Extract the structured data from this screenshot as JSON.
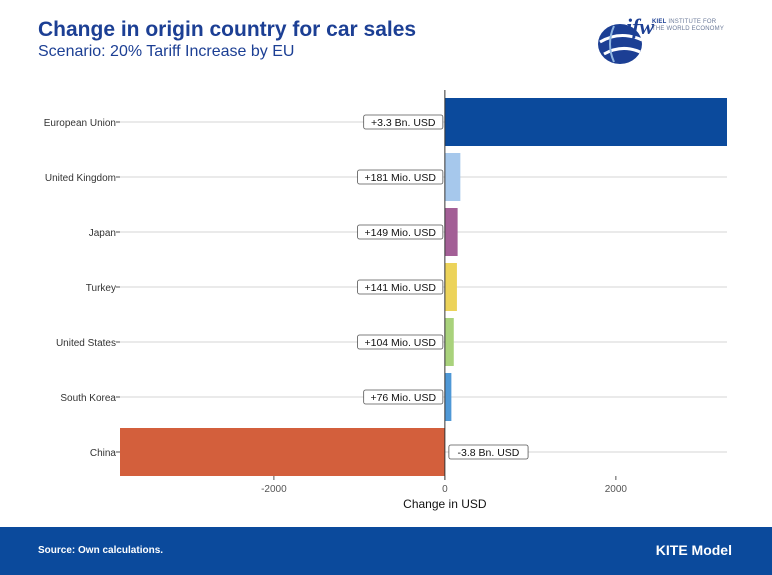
{
  "header": {
    "title": "Change in origin country for car sales",
    "subtitle": "Scenario: 20% Tariff Increase by EU"
  },
  "logo": {
    "wordmark": "ifw",
    "line1_bold": "KIEL",
    "line1_rest": " INSTITUTE FOR",
    "line2": "THE WORLD ECONOMY"
  },
  "chart_data": {
    "type": "bar",
    "orientation": "horizontal",
    "categories": [
      "European Union",
      "United Kingdom",
      "Japan",
      "Turkey",
      "United States",
      "South Korea",
      "China"
    ],
    "values": [
      3300,
      181,
      149,
      141,
      104,
      76,
      -3800
    ],
    "data_labels": [
      "+3.3 Bn. USD",
      "+181 Mio. USD",
      "+149 Mio. USD",
      "+141 Mio. USD",
      "+104 Mio. USD",
      "+76 Mio. USD",
      "-3.8 Bn. USD"
    ],
    "colors": [
      "#0b4a9c",
      "#a6c8ec",
      "#a35f96",
      "#ecd35a",
      "#a9d27c",
      "#4f98d6",
      "#d35f3c"
    ],
    "xlabel": "Change in USD",
    "xticks": [
      -2000,
      0,
      2000
    ],
    "xlim": [
      -3800,
      3300
    ],
    "grid": "horizontal",
    "legend": "none"
  },
  "footer": {
    "source": "Source: Own calculations.",
    "brand": "KITE Model"
  }
}
